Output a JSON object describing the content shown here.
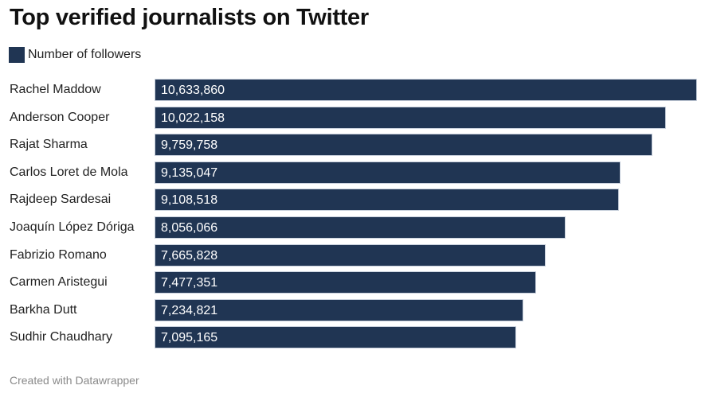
{
  "chart_data": {
    "type": "bar",
    "orientation": "horizontal",
    "title": "Top verified journalists on Twitter",
    "legend": [
      {
        "name": "Number of followers",
        "color": "#203553"
      }
    ],
    "legend_position": "top-left",
    "categories": [
      "Rachel Maddow",
      "Anderson Cooper",
      "Rajat Sharma",
      "Carlos Loret de Mola",
      "Rajdeep Sardesai",
      "Joaquín López Dóriga",
      "Fabrizio Romano",
      "Carmen Aristegui",
      "Barkha Dutt",
      "Sudhir Chaudhary"
    ],
    "series": [
      {
        "name": "Number of followers",
        "values": [
          10633860,
          10022158,
          9759758,
          9135047,
          9108518,
          8056066,
          7665828,
          7477351,
          7234821,
          7095165
        ]
      }
    ],
    "value_labels": [
      "10,633,860",
      "10,022,158",
      "9,759,758",
      "9,135,047",
      "9,108,518",
      "8,056,066",
      "7,665,828",
      "7,477,351",
      "7,234,821",
      "7,095,165"
    ],
    "xlabel": "",
    "ylabel": "",
    "grid": false,
    "bar_color": "#203553"
  },
  "footer": "Created with Datawrapper"
}
